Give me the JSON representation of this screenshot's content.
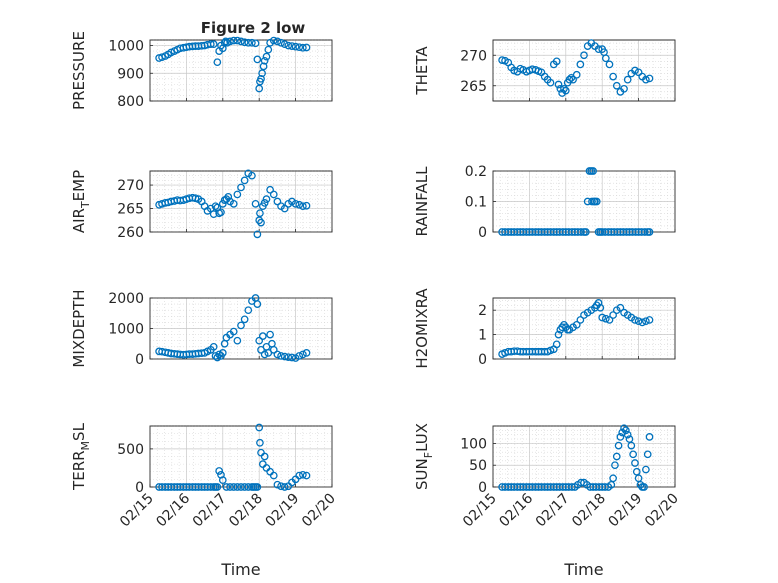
{
  "figure": {
    "title": "Figure 2 low"
  },
  "x_ticks": [
    "02/15",
    "02/16",
    "02/17",
    "02/18",
    "02/19",
    "02/20"
  ],
  "marker_color": "#0072BD",
  "chart_data": [
    {
      "type": "scatter",
      "title": "Figure 2 low",
      "ylabel": "PRESSURE",
      "ylabel_segments": [
        {
          "t": "PRESSURE"
        }
      ],
      "xlabel": "",
      "xlim": [
        0,
        5
      ],
      "ylim": [
        800,
        1020
      ],
      "yticks": [
        800,
        900,
        1000
      ],
      "x_ticklabels_visible": false,
      "series": [
        {
          "x": [
            0.25,
            0.33,
            0.42,
            0.5,
            0.58,
            0.67,
            0.75,
            0.83,
            0.92,
            1.0,
            1.08,
            1.17,
            1.25,
            1.33,
            1.42,
            1.5,
            1.58,
            1.67,
            1.75,
            1.85,
            1.9,
            1.95,
            2.0,
            2.05,
            2.08,
            2.12,
            2.2,
            2.3,
            2.4,
            2.5,
            2.6,
            2.7,
            2.8,
            2.9,
            2.95,
            3.0,
            3.02,
            3.05,
            3.08,
            3.12,
            3.15,
            3.2,
            3.25,
            3.3,
            3.4,
            3.5,
            3.6,
            3.7,
            3.8,
            3.9,
            4.0,
            4.1,
            4.2,
            4.3
          ],
          "y": [
            955,
            958,
            962,
            968,
            975,
            980,
            985,
            990,
            992,
            994,
            996,
            997,
            998,
            998,
            999,
            1000,
            1003,
            1005,
            1005,
            940,
            980,
            1000,
            990,
            1010,
            1015,
            1010,
            1015,
            1018,
            1018,
            1015,
            1012,
            1010,
            1010,
            1008,
            950,
            845,
            870,
            880,
            900,
            925,
            945,
            960,
            985,
            1010,
            1018,
            1015,
            1010,
            1005,
            1000,
            998,
            996,
            994,
            992,
            993
          ]
        }
      ]
    },
    {
      "type": "scatter",
      "ylabel": "THETA",
      "ylabel_segments": [
        {
          "t": "THETA"
        }
      ],
      "xlabel": "",
      "xlim": [
        0,
        5
      ],
      "ylim": [
        262.5,
        272.5
      ],
      "yticks": [
        265,
        270
      ],
      "x_ticklabels_visible": false,
      "series": [
        {
          "x": [
            0.25,
            0.33,
            0.42,
            0.5,
            0.58,
            0.67,
            0.75,
            0.83,
            0.92,
            1.0,
            1.08,
            1.17,
            1.25,
            1.33,
            1.42,
            1.5,
            1.58,
            1.67,
            1.75,
            1.8,
            1.85,
            1.9,
            1.95,
            2.0,
            2.05,
            2.1,
            2.15,
            2.2,
            2.3,
            2.4,
            2.5,
            2.6,
            2.7,
            2.8,
            2.9,
            3.0,
            3.05,
            3.1,
            3.2,
            3.3,
            3.4,
            3.5,
            3.6,
            3.7,
            3.8,
            3.9,
            4.0,
            4.1,
            4.2,
            4.3
          ],
          "y": [
            269.2,
            269.1,
            268.8,
            268.0,
            267.5,
            267.3,
            267.8,
            267.6,
            267.3,
            267.5,
            267.7,
            267.6,
            267.4,
            267.2,
            266.5,
            266.0,
            265.5,
            268.5,
            269.0,
            265.2,
            264.5,
            263.8,
            264.5,
            264.2,
            265.5,
            266.0,
            266.3,
            266.0,
            266.8,
            268.5,
            270.0,
            271.5,
            272.0,
            271.5,
            271.0,
            271.0,
            270.5,
            269.5,
            268.5,
            266.5,
            265.0,
            264.0,
            264.5,
            266.0,
            267.0,
            267.5,
            267.2,
            266.5,
            266.0,
            266.2
          ]
        }
      ]
    },
    {
      "type": "scatter",
      "ylabel": "AIR_TEMP",
      "ylabel_segments": [
        {
          "t": "AIR"
        },
        {
          "t": "T",
          "sub": true
        },
        {
          "t": "EMP"
        }
      ],
      "xlabel": "",
      "xlim": [
        0,
        5
      ],
      "ylim": [
        260,
        273
      ],
      "yticks": [
        260,
        265,
        270
      ],
      "x_ticklabels_visible": false,
      "series": [
        {
          "x": [
            0.25,
            0.33,
            0.42,
            0.5,
            0.58,
            0.67,
            0.75,
            0.83,
            0.92,
            1.0,
            1.08,
            1.17,
            1.25,
            1.33,
            1.42,
            1.5,
            1.58,
            1.67,
            1.75,
            1.8,
            1.85,
            1.9,
            1.95,
            2.0,
            2.05,
            2.1,
            2.15,
            2.2,
            2.3,
            2.4,
            2.5,
            2.6,
            2.7,
            2.8,
            2.9,
            2.95,
            3.0,
            3.02,
            3.05,
            3.1,
            3.15,
            3.2,
            3.3,
            3.4,
            3.5,
            3.6,
            3.7,
            3.8,
            3.9,
            4.0,
            4.1,
            4.2,
            4.3
          ],
          "y": [
            265.8,
            266.0,
            266.2,
            266.3,
            266.5,
            266.6,
            266.8,
            266.7,
            266.8,
            267.0,
            267.2,
            267.3,
            267.2,
            267.0,
            266.5,
            265.5,
            264.5,
            265.0,
            263.8,
            265.5,
            265.2,
            264.0,
            264.2,
            266.0,
            266.8,
            267.0,
            267.5,
            266.5,
            266.0,
            268.0,
            269.5,
            271.0,
            272.5,
            272.0,
            266.0,
            259.5,
            262.5,
            264.0,
            262.0,
            265.5,
            266.2,
            267.0,
            269.0,
            268.0,
            266.5,
            265.5,
            265.0,
            266.0,
            266.5,
            266.0,
            265.8,
            265.5,
            265.6
          ]
        }
      ]
    },
    {
      "type": "scatter",
      "ylabel": "RAINFALL",
      "ylabel_segments": [
        {
          "t": "RAINFALL"
        }
      ],
      "xlabel": "",
      "xlim": [
        0,
        5
      ],
      "ylim": [
        0,
        0.2
      ],
      "yticks": [
        0,
        0.1,
        0.2
      ],
      "x_ticklabels_visible": false,
      "series": [
        {
          "x": [
            0.25,
            0.33,
            0.42,
            0.5,
            0.58,
            0.67,
            0.75,
            0.83,
            0.92,
            1.0,
            1.08,
            1.17,
            1.25,
            1.33,
            1.42,
            1.5,
            1.58,
            1.67,
            1.75,
            1.83,
            1.92,
            2.0,
            2.08,
            2.17,
            2.25,
            2.33,
            2.42,
            2.5,
            2.55,
            2.6,
            2.65,
            2.7,
            2.72,
            2.75,
            2.78,
            2.8,
            2.85,
            2.9,
            2.95,
            3.0,
            3.08,
            3.17,
            3.25,
            3.33,
            3.42,
            3.5,
            3.58,
            3.67,
            3.75,
            3.83,
            3.92,
            4.0,
            4.08,
            4.17,
            4.25,
            4.3
          ],
          "y": [
            0,
            0,
            0,
            0,
            0,
            0,
            0,
            0,
            0,
            0,
            0,
            0,
            0,
            0,
            0,
            0,
            0,
            0,
            0,
            0,
            0,
            0,
            0,
            0,
            0,
            0,
            0,
            0,
            0,
            0.1,
            0.2,
            0.2,
            0.1,
            0.2,
            0.1,
            0.1,
            0.1,
            0,
            0,
            0,
            0,
            0,
            0,
            0,
            0,
            0,
            0,
            0,
            0,
            0,
            0,
            0,
            0,
            0,
            0,
            0
          ]
        }
      ]
    },
    {
      "type": "scatter",
      "ylabel": "MIXDEPTH",
      "ylabel_segments": [
        {
          "t": "MIXDEPTH"
        }
      ],
      "xlabel": "",
      "xlim": [
        0,
        5
      ],
      "ylim": [
        0,
        2000
      ],
      "yticks": [
        0,
        1000,
        2000
      ],
      "x_ticklabels_visible": false,
      "series": [
        {
          "x": [
            0.25,
            0.33,
            0.42,
            0.5,
            0.58,
            0.67,
            0.75,
            0.83,
            0.92,
            1.0,
            1.08,
            1.17,
            1.25,
            1.33,
            1.42,
            1.5,
            1.58,
            1.67,
            1.75,
            1.8,
            1.85,
            1.9,
            1.95,
            2.0,
            2.05,
            2.1,
            2.2,
            2.3,
            2.4,
            2.5,
            2.6,
            2.7,
            2.8,
            2.9,
            2.95,
            3.0,
            3.05,
            3.1,
            3.15,
            3.2,
            3.25,
            3.3,
            3.35,
            3.4,
            3.5,
            3.6,
            3.7,
            3.8,
            3.9,
            4.0,
            4.1,
            4.2,
            4.3
          ],
          "y": [
            250,
            240,
            220,
            200,
            180,
            170,
            160,
            150,
            140,
            150,
            160,
            160,
            170,
            180,
            190,
            200,
            250,
            300,
            400,
            100,
            50,
            150,
            100,
            200,
            500,
            700,
            800,
            900,
            600,
            1100,
            1300,
            1600,
            1900,
            2000,
            1800,
            600,
            300,
            750,
            150,
            400,
            200,
            800,
            500,
            300,
            150,
            100,
            80,
            60,
            50,
            30,
            100,
            150,
            200
          ]
        }
      ]
    },
    {
      "type": "scatter",
      "ylabel": "H2OMIXRA",
      "ylabel_segments": [
        {
          "t": "H2OMIXRA"
        }
      ],
      "xlabel": "",
      "xlim": [
        0,
        5
      ],
      "ylim": [
        0,
        2.5
      ],
      "yticks": [
        0,
        1,
        2
      ],
      "x_ticklabels_visible": false,
      "series": [
        {
          "x": [
            0.25,
            0.33,
            0.42,
            0.5,
            0.58,
            0.67,
            0.75,
            0.83,
            0.92,
            1.0,
            1.08,
            1.17,
            1.25,
            1.33,
            1.42,
            1.5,
            1.58,
            1.67,
            1.75,
            1.8,
            1.85,
            1.9,
            1.95,
            2.0,
            2.05,
            2.1,
            2.2,
            2.3,
            2.4,
            2.5,
            2.6,
            2.7,
            2.8,
            2.85,
            2.9,
            2.95,
            3.0,
            3.1,
            3.2,
            3.3,
            3.4,
            3.5,
            3.6,
            3.7,
            3.8,
            3.9,
            4.0,
            4.1,
            4.2,
            4.3
          ],
          "y": [
            0.2,
            0.25,
            0.3,
            0.3,
            0.32,
            0.32,
            0.3,
            0.3,
            0.3,
            0.3,
            0.3,
            0.3,
            0.3,
            0.3,
            0.3,
            0.3,
            0.35,
            0.4,
            0.6,
            1.0,
            1.2,
            1.3,
            1.4,
            1.3,
            1.2,
            1.2,
            1.3,
            1.4,
            1.6,
            1.8,
            1.9,
            2.0,
            2.1,
            2.2,
            2.3,
            2.1,
            1.7,
            1.65,
            1.6,
            1.8,
            2.0,
            2.1,
            1.9,
            1.8,
            1.7,
            1.6,
            1.55,
            1.5,
            1.55,
            1.6
          ]
        }
      ]
    },
    {
      "type": "scatter",
      "ylabel": "TERR_MSL",
      "ylabel_segments": [
        {
          "t": "TERR"
        },
        {
          "t": "M",
          "sub": true
        },
        {
          "t": "SL"
        }
      ],
      "xlabel": "Time",
      "xlim": [
        0,
        5
      ],
      "ylim": [
        0,
        800
      ],
      "yticks": [
        0,
        500
      ],
      "x_ticklabels_visible": true,
      "series": [
        {
          "x": [
            0.25,
            0.33,
            0.42,
            0.5,
            0.58,
            0.67,
            0.75,
            0.83,
            0.92,
            1.0,
            1.08,
            1.17,
            1.25,
            1.33,
            1.42,
            1.5,
            1.58,
            1.67,
            1.75,
            1.8,
            1.85,
            1.9,
            1.95,
            2.0,
            2.1,
            2.2,
            2.3,
            2.4,
            2.5,
            2.6,
            2.7,
            2.8,
            2.85,
            2.9,
            2.95,
            3.0,
            3.02,
            3.05,
            3.1,
            3.15,
            3.2,
            3.3,
            3.4,
            3.5,
            3.6,
            3.7,
            3.8,
            3.9,
            4.0,
            4.1,
            4.2,
            4.3
          ],
          "y": [
            0,
            0,
            0,
            0,
            0,
            0,
            0,
            0,
            0,
            0,
            0,
            0,
            0,
            0,
            0,
            0,
            0,
            0,
            0,
            0,
            0,
            210,
            160,
            90,
            0,
            0,
            0,
            0,
            0,
            0,
            0,
            0,
            0,
            0,
            0,
            780,
            580,
            450,
            300,
            400,
            250,
            200,
            150,
            30,
            10,
            0,
            10,
            60,
            100,
            150,
            160,
            150
          ]
        }
      ]
    },
    {
      "type": "scatter",
      "ylabel": "SUN_FLUX",
      "ylabel_segments": [
        {
          "t": "SUN"
        },
        {
          "t": "F",
          "sub": true
        },
        {
          "t": "LUX"
        }
      ],
      "xlabel": "Time",
      "xlim": [
        0,
        5
      ],
      "ylim": [
        0,
        140
      ],
      "yticks": [
        0,
        50,
        100
      ],
      "x_ticklabels_visible": true,
      "series": [
        {
          "x": [
            0.25,
            0.33,
            0.42,
            0.5,
            0.58,
            0.67,
            0.75,
            0.83,
            0.92,
            1.0,
            1.08,
            1.17,
            1.25,
            1.33,
            1.42,
            1.5,
            1.58,
            1.67,
            1.75,
            1.83,
            1.92,
            2.0,
            2.08,
            2.17,
            2.25,
            2.33,
            2.42,
            2.5,
            2.58,
            2.67,
            2.75,
            2.83,
            2.92,
            3.0,
            3.08,
            3.17,
            3.25,
            3.3,
            3.35,
            3.4,
            3.45,
            3.5,
            3.55,
            3.6,
            3.65,
            3.7,
            3.75,
            3.8,
            3.85,
            3.9,
            3.95,
            4.0,
            4.05,
            4.1,
            4.15,
            4.2,
            4.25,
            4.3
          ],
          "y": [
            0,
            0,
            0,
            0,
            0,
            0,
            0,
            0,
            0,
            0,
            0,
            0,
            0,
            0,
            0,
            0,
            0,
            0,
            0,
            0,
            0,
            0,
            0,
            0,
            0,
            5,
            10,
            10,
            5,
            0,
            0,
            0,
            0,
            0,
            0,
            0,
            5,
            20,
            50,
            70,
            95,
            115,
            125,
            135,
            130,
            120,
            110,
            95,
            75,
            55,
            35,
            20,
            5,
            0,
            0,
            40,
            75,
            115
          ]
        }
      ]
    }
  ]
}
